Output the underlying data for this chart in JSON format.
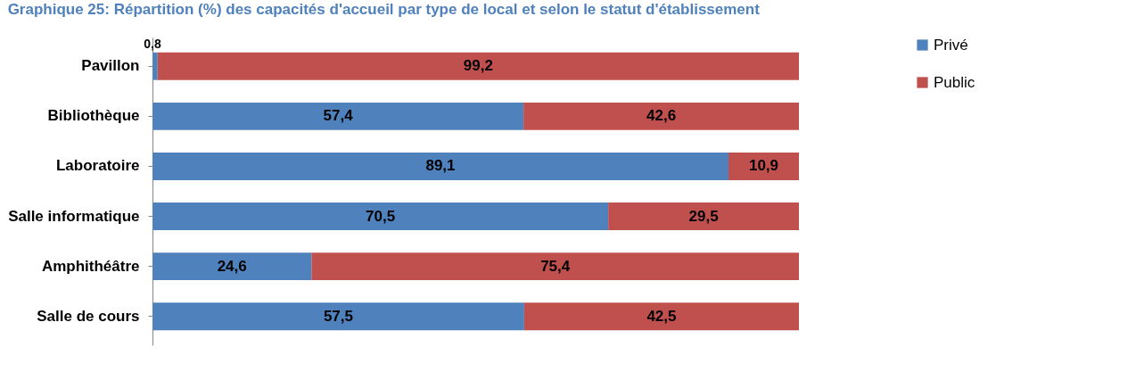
{
  "chart_data": {
    "type": "bar",
    "title": "Graphique 25: Répartition (%) des capacités d'accueil par type de local et selon le statut d'établissement",
    "orientation": "horizontal",
    "stacked": true,
    "categories": [
      "Pavillon",
      "Bibliothèque",
      "Laboratoire",
      "Salle informatique",
      "Amphithéâtre",
      "Salle de cours"
    ],
    "series": [
      {
        "name": "Privé",
        "color": "#4f81bd",
        "values": [
          0.8,
          57.4,
          89.1,
          70.5,
          24.6,
          57.5
        ],
        "value_labels": [
          "0,8",
          "57,4",
          "89,1",
          "70,5",
          "24,6",
          "57,5"
        ]
      },
      {
        "name": "Public",
        "color": "#c0504d",
        "values": [
          99.2,
          42.6,
          10.9,
          29.5,
          75.4,
          42.5
        ],
        "value_labels": [
          "99,2",
          "42,6",
          "10,9",
          "29,5",
          "75,4",
          "42,5"
        ]
      }
    ],
    "legend": "right",
    "tick_labels": "y"
  }
}
